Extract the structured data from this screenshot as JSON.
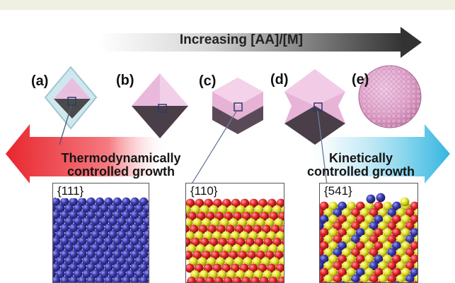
{
  "top_arrow": {
    "label": "Increasing [AA]/[M]"
  },
  "panels": [
    {
      "letter": "(a)"
    },
    {
      "letter": "(b)"
    },
    {
      "letter": "(c)"
    },
    {
      "letter": "(d)"
    },
    {
      "letter": "(e)"
    }
  ],
  "growth": {
    "thermo_line1": "Thermodynamically",
    "thermo_line2": "controlled growth",
    "kinetic_line1": "Kinetically",
    "kinetic_line2": "controlled growth"
  },
  "surfaces": [
    {
      "label": "{111}"
    },
    {
      "label": "{110}"
    },
    {
      "label": "{541}"
    }
  ],
  "colors": {
    "red_arrow": "#f0424a",
    "blue_arrow": "#4ec3e4",
    "top_arrow_dark": "#3a3a3a",
    "atom_blue": "#3a3aa8",
    "atom_red": "#e8282a",
    "atom_yellow": "#e6e62c",
    "crystal_pink": "#e8b6d8",
    "crystal_dark": "#5a4a58"
  }
}
